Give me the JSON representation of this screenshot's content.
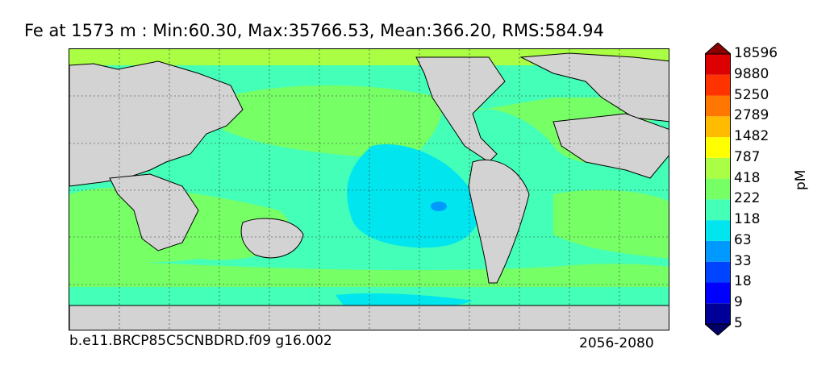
{
  "title": "Fe at 1573 m : Min:60.30, Max:35766.53, Mean:366.20, RMS:584.94",
  "caption_left": "b.e11.BRCP85C5CNBDRD.f09 g16.002",
  "caption_right": "2056-2080",
  "colorbar": {
    "unit": "pM",
    "levels": [
      "5",
      "9",
      "18",
      "33",
      "63",
      "118",
      "222",
      "418",
      "787",
      "1482",
      "2789",
      "5250",
      "9880",
      "18596"
    ],
    "colors": [
      "#000066",
      "#000099",
      "#0000ff",
      "#0044ff",
      "#0099ff",
      "#00e5ee",
      "#44ffb8",
      "#77ff66",
      "#aaff44",
      "#ffff00",
      "#ffbb00",
      "#ff7700",
      "#ff3300",
      "#dd0000",
      "#880000"
    ]
  },
  "map": {
    "land_color": "#d3d3d3",
    "icon": "world-map-ocean-field"
  }
}
